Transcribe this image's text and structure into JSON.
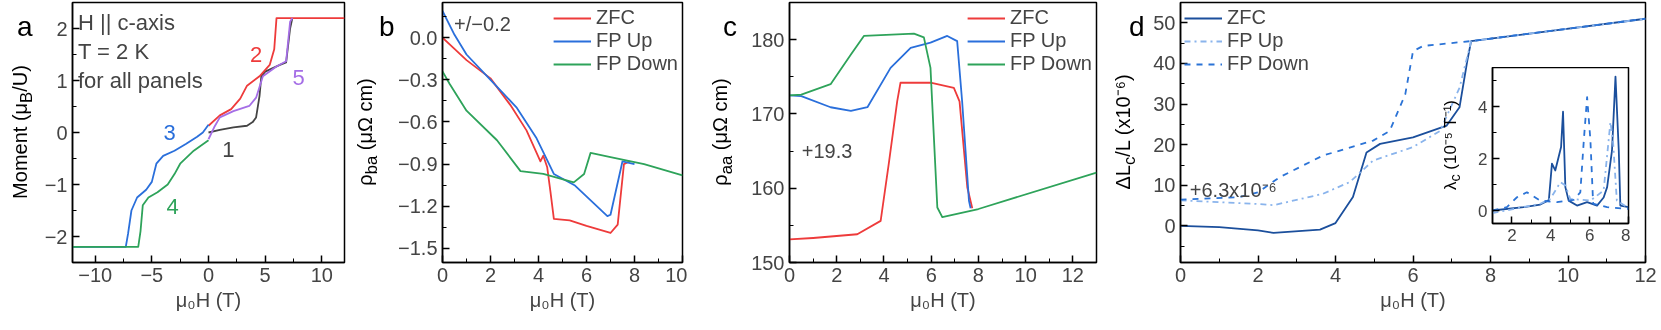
{
  "chart_data": [
    {
      "type": "line",
      "title": "a",
      "xlabel": "μ₀H (T)",
      "ylabel": "Moment (μ$_{B}$/U)",
      "xlim": [
        -12,
        12
      ],
      "xticks": [
        {
          "value": -10,
          "label": "−10"
        },
        {
          "value": -5,
          "label": "−5"
        },
        0,
        5,
        10
      ],
      "ylim": [
        -2.5,
        2.5
      ],
      "yticks": [
        {
          "value": -2,
          "label": "−2"
        },
        {
          "value": -1,
          "label": "−1"
        },
        0,
        1,
        2
      ],
      "annotations": [
        "H || c-axis\nT = 2 K\nfor all panels"
      ],
      "series": [
        {
          "name": "1",
          "color": "#444444",
          "x": [
            0,
            1,
            2.2,
            3.4,
            3.9,
            4.2,
            4.5,
            4.66,
            5,
            6.3,
            6.85,
            7.2,
            7.4
          ],
          "values": [
            0,
            0.05,
            0.1,
            0.13,
            0.2,
            0.29,
            0.7,
            1.08,
            1.17,
            1.3,
            1.35,
            2.0,
            2.2
          ]
        },
        {
          "name": "2",
          "color": "#ee3b3b",
          "x": [
            0,
            1,
            2,
            2.8,
            3.4,
            4.5,
            5.4,
            5.8,
            6.0,
            12
          ],
          "values": [
            0.13,
            0.33,
            0.45,
            0.65,
            0.9,
            1.08,
            1.3,
            1.6,
            2.2,
            2.2
          ]
        },
        {
          "name": "3",
          "color": "#2a6fdb",
          "x": [
            -12,
            -7.3,
            -7.1,
            -6.8,
            -6.3,
            -5.5,
            -5,
            -4.6,
            -4,
            -3,
            -2,
            -1,
            -0.5,
            0
          ],
          "values": [
            -2.2,
            -2.2,
            -1.95,
            -1.5,
            -1.25,
            -1.1,
            -0.95,
            -0.6,
            -0.45,
            -0.35,
            -0.22,
            -0.08,
            0,
            0.15
          ]
        },
        {
          "name": "4",
          "color": "#2ea35a",
          "x": [
            -12,
            -6.2,
            -6,
            -5.8,
            -5.3,
            -4.5,
            -3.6,
            -3,
            -2.5,
            -1.3,
            0
          ],
          "values": [
            -2.2,
            -2.2,
            -1.9,
            -1.4,
            -1.25,
            -1.15,
            -1.0,
            -0.8,
            -0.6,
            -0.35,
            -0.15
          ]
        },
        {
          "name": "5",
          "color": "#a56ee6",
          "x": [
            0,
            0.5,
            1,
            2.2,
            3.6,
            4.2,
            4.8,
            6,
            6.85,
            7.2,
            7.4
          ],
          "values": [
            -0.13,
            0.1,
            0.29,
            0.41,
            0.51,
            0.67,
            1.08,
            1.27,
            1.37,
            2.13,
            2.2
          ]
        }
      ]
    },
    {
      "type": "line",
      "title": "b",
      "xlabel": "μ₀H (T)",
      "ylabel": "ρ$_{ba}$ (μΩ cm)",
      "xlim": [
        0,
        10
      ],
      "xticks": [
        0,
        2,
        4,
        6,
        8,
        10
      ],
      "ylim": [
        -1.6,
        0.25
      ],
      "yticks": [
        {
          "value": -1.5,
          "label": "−1.5"
        },
        {
          "value": -1.2,
          "label": "−1.2"
        },
        {
          "value": -0.9,
          "label": "−0.9"
        },
        {
          "value": -0.6,
          "label": "−0.6"
        },
        {
          "value": -0.3,
          "label": "−0.3"
        },
        {
          "value": 0,
          "label": "0.0"
        }
      ],
      "legend": "top right",
      "annotations": [
        {
          "text": "+/−0.2",
          "x": 0.4,
          "y": 0.1
        }
      ],
      "series": [
        {
          "name": "ZFC",
          "color": "#ee3b3b",
          "x": [
            0,
            0.5,
            1,
            2,
            2.83,
            3.5,
            4.08,
            4.2,
            4.36,
            4.5,
            4.64,
            5.3,
            6,
            7,
            7.3,
            7.56,
            7.8
          ],
          "values": [
            0,
            -0.08,
            -0.16,
            -0.29,
            -0.48,
            -0.66,
            -0.88,
            -0.84,
            -0.92,
            -1.1,
            -1.29,
            -1.3,
            -1.34,
            -1.39,
            -1.33,
            -0.9,
            -0.88
          ]
        },
        {
          "name": "FP Up",
          "color": "#2a6fdb",
          "x": [
            0,
            0.5,
            1,
            2,
            3.1,
            3.9,
            4.64,
            5.5,
            6.87,
            7,
            7.5,
            8
          ],
          "values": [
            0.19,
            0.02,
            -0.12,
            -0.3,
            -0.5,
            -0.71,
            -0.97,
            -1.05,
            -1.27,
            -1.26,
            -0.88,
            -0.9
          ]
        },
        {
          "name": "FP Down",
          "color": "#2ea35a",
          "x": [
            0,
            0.3,
            1,
            2.27,
            3.25,
            4.2,
            5.47,
            5.9,
            6.17,
            7,
            8.4,
            10
          ],
          "values": [
            -0.24,
            -0.33,
            -0.52,
            -0.73,
            -0.95,
            -0.97,
            -1.03,
            -0.97,
            -0.82,
            -0.85,
            -0.9,
            -0.98
          ]
        }
      ]
    },
    {
      "type": "line",
      "title": "c",
      "xlabel": "μ₀H (T)",
      "ylabel": "ρ$_{aa}$ (μΩ cm)",
      "xlim": [
        0,
        13
      ],
      "xticks": [
        0,
        2,
        4,
        6,
        8,
        10,
        12
      ],
      "ylim": [
        150,
        185
      ],
      "yticks": [
        150,
        160,
        170,
        180
      ],
      "legend": "top right",
      "annotations": [
        "+19.3"
      ],
      "series": [
        {
          "name": "ZFC",
          "color": "#ee3b3b",
          "x": [
            0,
            1,
            2.87,
            3.86,
            4.2,
            4.56,
            4.7,
            5.97,
            6.96,
            7.2,
            7.53,
            7.74
          ],
          "values": [
            153.1,
            153.3,
            153.8,
            155.6,
            163.2,
            171.7,
            174.2,
            174.2,
            173.5,
            171.7,
            160.1,
            157.3
          ]
        },
        {
          "name": "FP Up",
          "color": "#2a6fdb",
          "x": [
            0,
            0.5,
            1.74,
            2.6,
            3.3,
            4.28,
            5.13,
            5.97,
            6.68,
            7.1,
            7.31,
            7.6,
            7.67
          ],
          "values": [
            172.5,
            172.4,
            170.9,
            170.4,
            170.9,
            176.2,
            178.9,
            179.6,
            180.5,
            179.8,
            171.7,
            158.3,
            157.3
          ]
        },
        {
          "name": "FP Down",
          "color": "#2ea35a",
          "x": [
            0,
            0.5,
            1.74,
            2.6,
            3.15,
            5.27,
            5.69,
            5.97,
            6.26,
            6.47,
            8,
            13
          ],
          "values": [
            172.5,
            172.6,
            174,
            178,
            180.5,
            180.8,
            180.3,
            176.2,
            157.4,
            156.1,
            157.2,
            162.1
          ]
        }
      ]
    },
    {
      "type": "line",
      "title": "d",
      "xlabel": "μ₀H (T)",
      "ylabel": "ΔL$_{c}$/L (x10⁻⁶)",
      "xlim": [
        0,
        12
      ],
      "xticks": [
        0,
        2,
        4,
        6,
        8,
        10,
        12
      ],
      "ylim": [
        -9,
        55
      ],
      "yticks": [
        0,
        10,
        20,
        30,
        40,
        50
      ],
      "legend": "top left",
      "annotations": [
        "+6.3x10⁻⁶"
      ],
      "series": [
        {
          "name": "ZFC",
          "color": "#1b4f9c",
          "line_style": "solid",
          "x": [
            0,
            1,
            2,
            2.4,
            3.6,
            4.0,
            4.45,
            4.8,
            5.15,
            6,
            6.87,
            7.2,
            7.4,
            7.5,
            12
          ],
          "values": [
            0,
            -0.3,
            -1.1,
            -1.7,
            -0.9,
            0.7,
            7.1,
            18.1,
            20.2,
            21.8,
            24.7,
            29.2,
            40.6,
            45.5,
            51
          ]
        },
        {
          "name": "FP Up",
          "color": "#8ab4ec",
          "line_style": "dashdot",
          "x": [
            0,
            2,
            2.4,
            3.67,
            4.37,
            4.97,
            6,
            6.7,
            7.2,
            7.5,
            12
          ],
          "values": [
            6.3,
            5.4,
            5.1,
            7.9,
            10.8,
            16.1,
            19.4,
            23.4,
            34,
            45.5,
            51
          ]
        },
        {
          "name": "FP Down",
          "color": "#2b73d6",
          "line_style": "dashed",
          "x": [
            0,
            1.53,
            2,
            2.56,
            3.67,
            4.97,
            5.4,
            5.8,
            6,
            6.26,
            7.5,
            12
          ],
          "values": [
            6.5,
            7.1,
            8.3,
            12,
            17.3,
            21,
            23.4,
            32.4,
            43,
            44.3,
            45.5,
            51
          ]
        }
      ]
    },
    {
      "type": "line",
      "ylabel": "λ$_{c}$ (10⁻⁵ T⁻¹)",
      "xlim": [
        1,
        8
      ],
      "xticks": [
        2,
        4,
        6,
        8
      ],
      "ylim": [
        -0.5,
        5.5
      ],
      "yticks": [
        0,
        2,
        4
      ],
      "series": [
        {
          "color": "#1b4f9c",
          "line_style": "solid",
          "x": [
            1,
            2.6,
            3.46,
            3.9,
            4.06,
            4.23,
            4.4,
            4.53,
            4.63,
            4.75,
            4.92,
            5.35,
            5.87,
            6.38,
            6.72,
            6.9,
            7.15,
            7.33,
            7.5,
            7.58,
            8
          ],
          "values": [
            0,
            0.13,
            0.23,
            0.4,
            1.8,
            1.54,
            2.05,
            2.44,
            3.8,
            0.9,
            0.38,
            0.19,
            0.32,
            0.19,
            0.5,
            0.9,
            2.3,
            5.15,
            2.3,
            0.19,
            0.13
          ]
        },
        {
          "color": "#8ab4ec",
          "line_style": "dashdot",
          "x": [
            1,
            3.46,
            3.98,
            4.5,
            4.75,
            5.0,
            6.04,
            6.72,
            7.07,
            7.2,
            7.4,
            8
          ],
          "values": [
            -0.1,
            0.26,
            0.45,
            1.09,
            0.96,
            0.45,
            0.38,
            0.77,
            3.4,
            2.7,
            0.38,
            0.1
          ]
        },
        {
          "color": "#2b73d6",
          "line_style": "dashed",
          "x": [
            1,
            1.74,
            2.26,
            2.77,
            3.46,
            4.32,
            5.18,
            5.52,
            5.7,
            5.87,
            6.04,
            6.18,
            6.9,
            8
          ],
          "values": [
            0,
            0.13,
            0.51,
            0.7,
            0.38,
            0.32,
            0.41,
            0.7,
            2.7,
            4.36,
            2.7,
            0.26,
            0.13,
            0.06
          ]
        }
      ]
    }
  ]
}
